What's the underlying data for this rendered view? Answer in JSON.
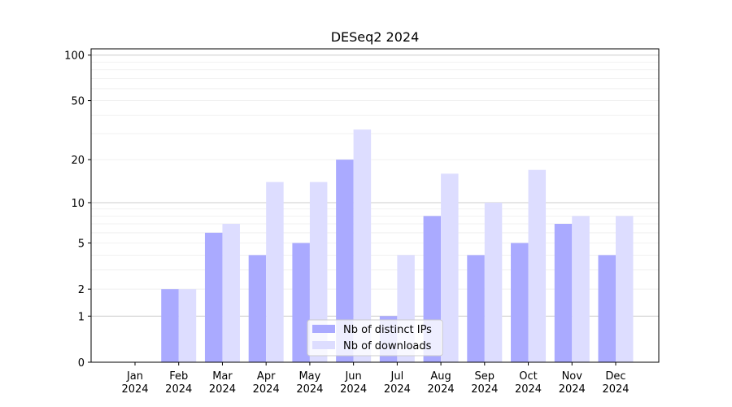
{
  "chart_data": {
    "type": "bar",
    "title": "DESeq2 2024",
    "xlabel": "",
    "ylabel": "",
    "yscale": "log(1+y)",
    "ylim": [
      0,
      110
    ],
    "yticks": [
      0,
      1,
      2,
      5,
      10,
      20,
      50,
      100
    ],
    "grid": "horizontal",
    "legend_position": "bottom-center",
    "categories": [
      "Jan\n2024",
      "Feb\n2024",
      "Mar\n2024",
      "Apr\n2024",
      "May\n2024",
      "Jun\n2024",
      "Jul\n2024",
      "Aug\n2024",
      "Sep\n2024",
      "Oct\n2024",
      "Nov\n2024",
      "Dec\n2024"
    ],
    "series": [
      {
        "name": "Nb of distinct IPs",
        "color": "#aaaaff",
        "values": [
          0,
          2,
          6,
          4,
          5,
          20,
          1,
          8,
          4,
          5,
          7,
          4
        ]
      },
      {
        "name": "Nb of downloads",
        "color": "#ddddff",
        "values": [
          0,
          2,
          7,
          14,
          14,
          32,
          4,
          16,
          10,
          17,
          8,
          8
        ]
      }
    ]
  }
}
